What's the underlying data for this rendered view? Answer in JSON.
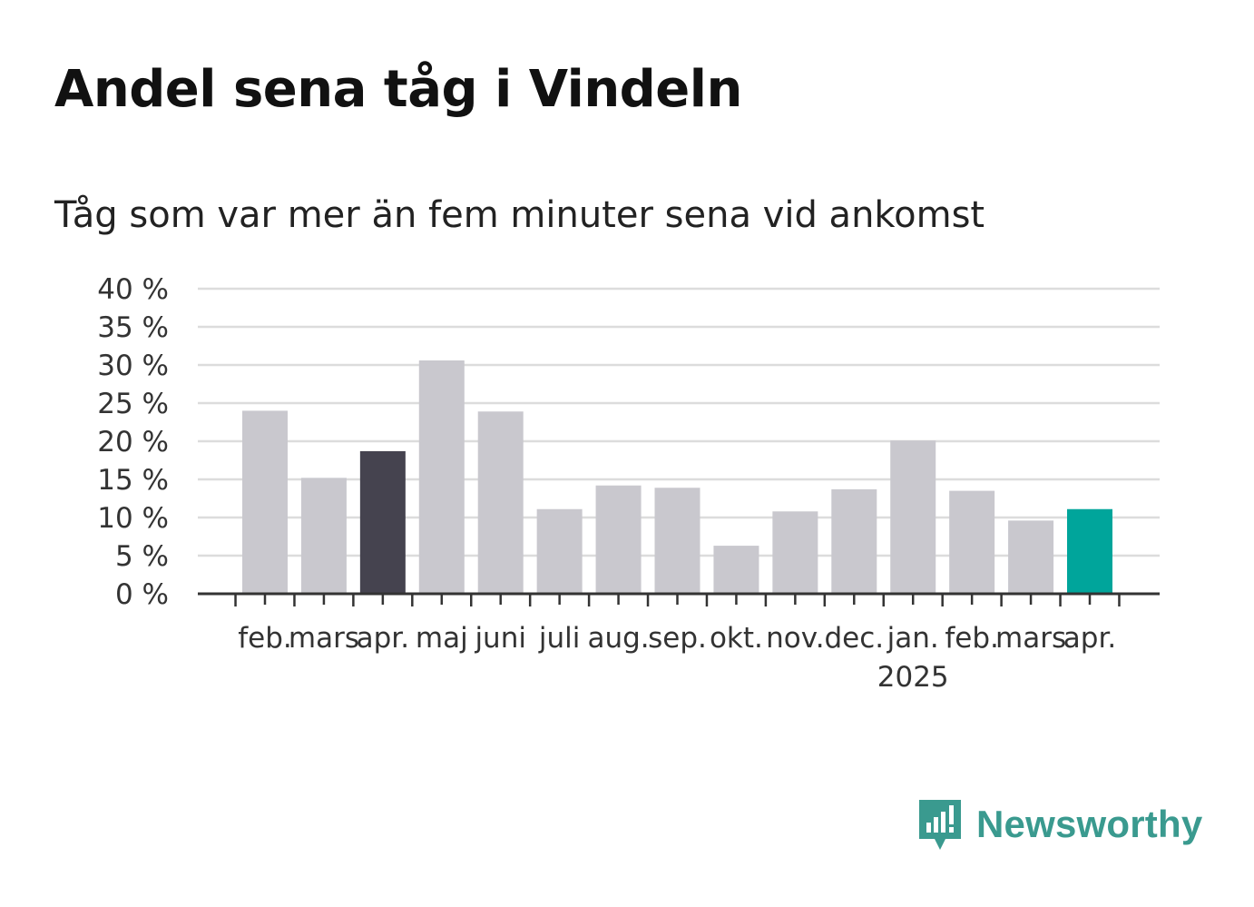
{
  "title": "Andel sena tåg i Vindeln",
  "subtitle": "Tåg som var mer än fem minuter sena vid ankomst",
  "brand": {
    "name": "Newsworthy",
    "icon": "newsworthy-logo-icon",
    "color": "#3a9a8f"
  },
  "chart_data": {
    "type": "bar",
    "title": "Andel sena tåg i Vindeln",
    "subtitle": "Tåg som var mer än fem minuter sena vid ankomst",
    "categories": [
      "feb.",
      "mars",
      "apr.",
      "maj",
      "juni",
      "juli",
      "aug.",
      "sep.",
      "okt.",
      "nov.",
      "dec.",
      "jan.",
      "feb.",
      "mars",
      "apr."
    ],
    "category_sublabels": [
      "",
      "",
      "",
      "",
      "",
      "",
      "",
      "",
      "",
      "",
      "",
      "2025",
      "",
      "",
      ""
    ],
    "values": [
      24,
      15.2,
      18.7,
      30.6,
      23.9,
      11.1,
      14.2,
      13.9,
      6.3,
      10.8,
      13.7,
      20.1,
      13.5,
      9.6,
      11.1
    ],
    "bar_colors": [
      "#c9c8ce",
      "#c9c8ce",
      "#45434f",
      "#c9c8ce",
      "#c9c8ce",
      "#c9c8ce",
      "#c9c8ce",
      "#c9c8ce",
      "#c9c8ce",
      "#c9c8ce",
      "#c9c8ce",
      "#c9c8ce",
      "#c9c8ce",
      "#c9c8ce",
      "#00a59b"
    ],
    "yticks": [
      "0 %",
      "5 %",
      "10 %",
      "15 %",
      "20 %",
      "25 %",
      "30 %",
      "35 %",
      "40 %"
    ],
    "ylim": [
      0,
      40
    ],
    "xlabel": "",
    "ylabel": "",
    "grid": true,
    "legend": "none"
  }
}
